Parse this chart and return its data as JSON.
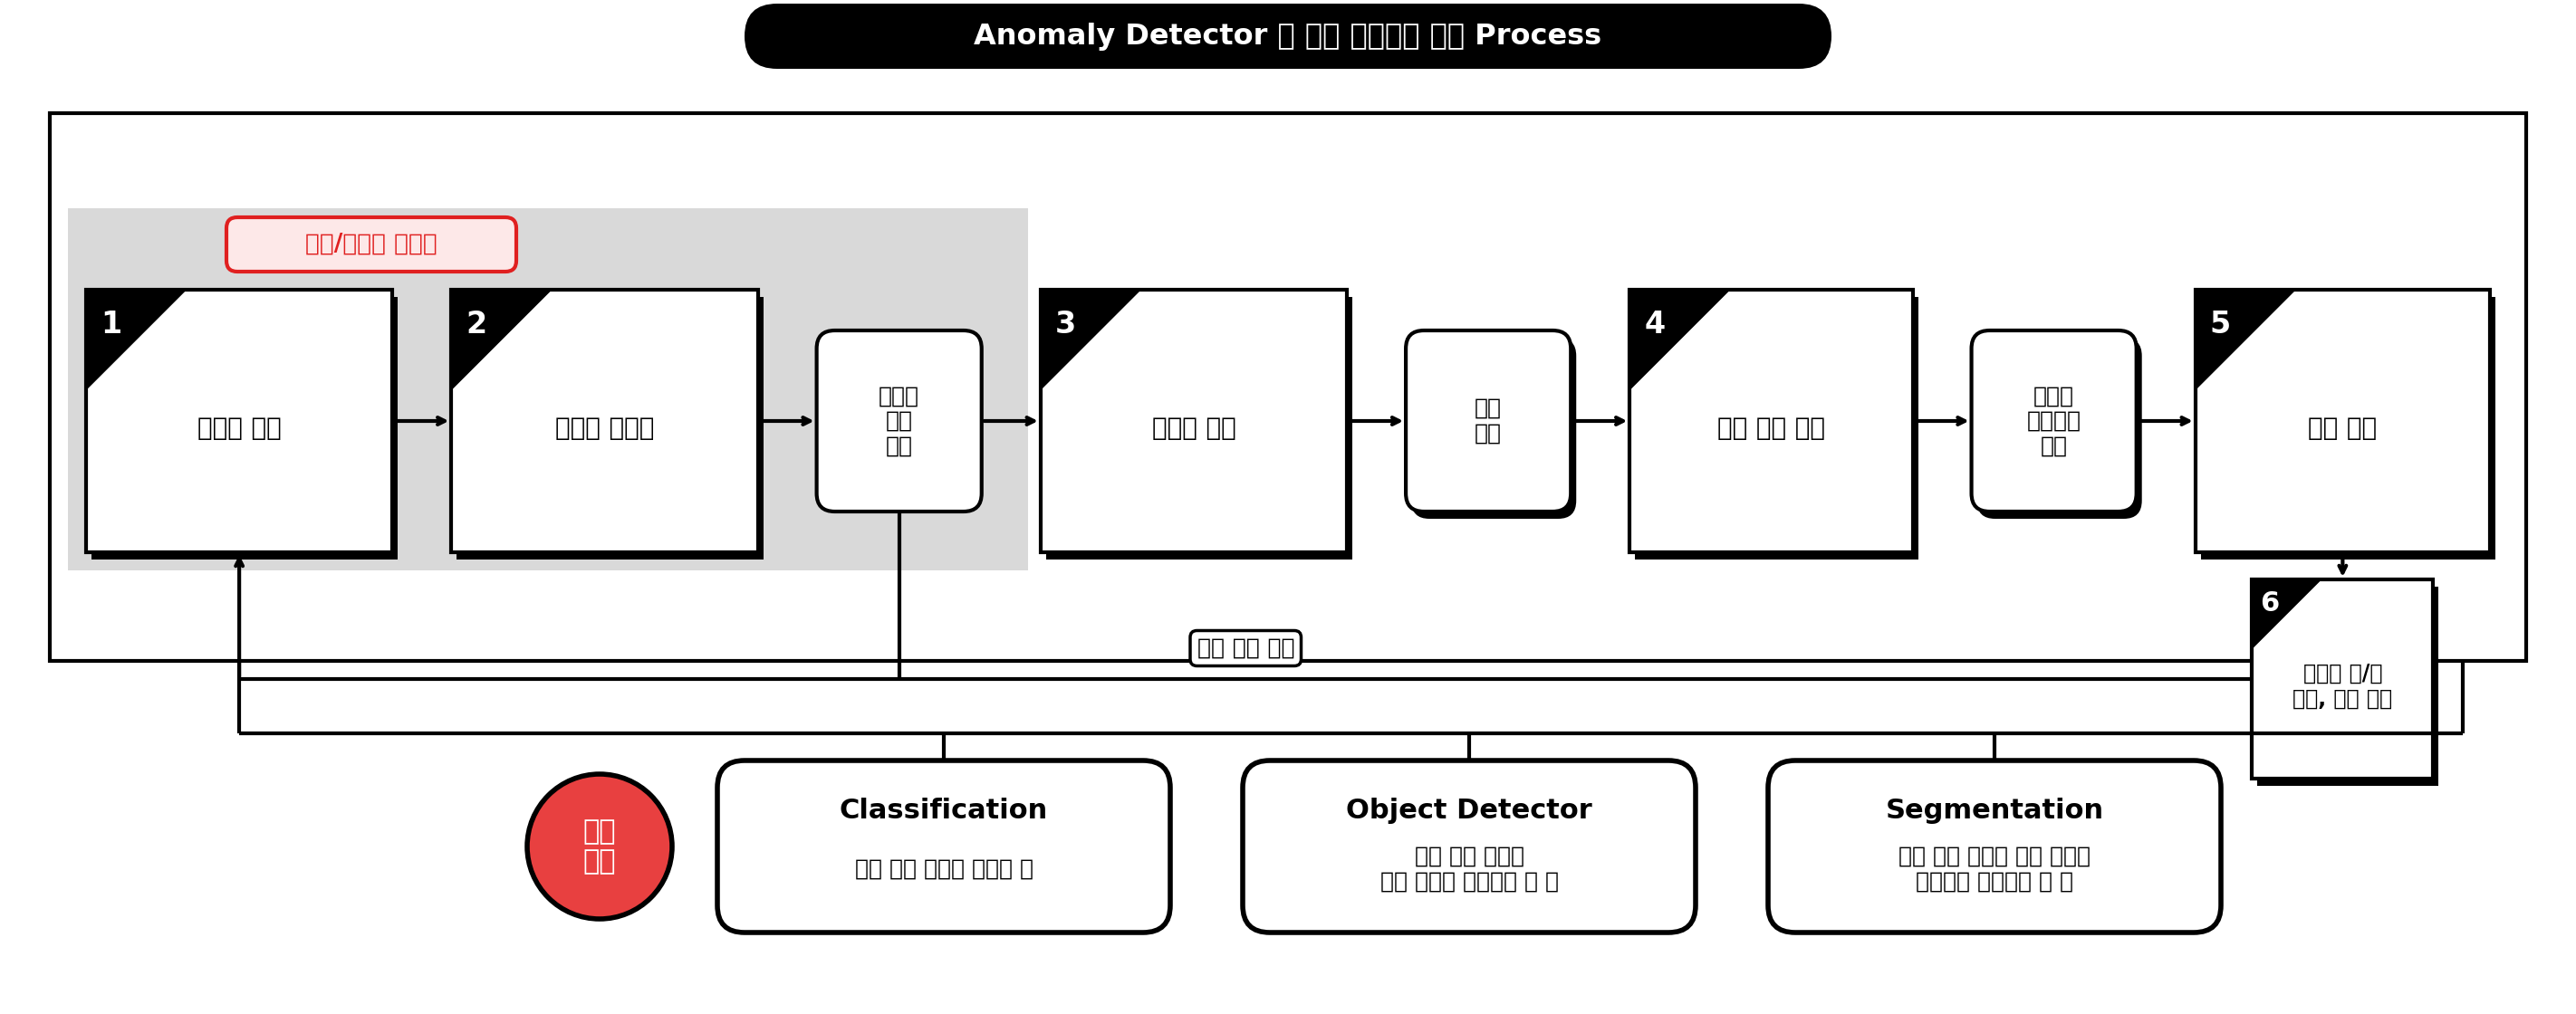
{
  "title": "Anomaly Detector 외 기본 모델들의 실행 Process",
  "bg_color": "#ffffff",
  "main_border_color": "#000000",
  "gray_bg_color": "#d9d9d9",
  "tag_label": "정상/비정상 데이터",
  "tag_bg": "#fde8e8",
  "tag_border": "#e02020",
  "tag_text_color": "#e02020",
  "steps": [
    {
      "num": "1",
      "label": "데이터 수집",
      "style": "numbered"
    },
    {
      "num": "2",
      "label": "데이터 라벨링",
      "style": "numbered"
    },
    {
      "num": null,
      "label": "베이직\n모델\n선택",
      "style": "rounded"
    },
    {
      "num": "3",
      "label": "데이터 학습",
      "style": "numbered"
    },
    {
      "num": null,
      "label": "모델\n생성",
      "style": "rounded"
    },
    {
      "num": "4",
      "label": "모델 성능 평가",
      "style": "numbered"
    },
    {
      "num": null,
      "label": "사용자\n맞춤설정\n추가",
      "style": "rounded"
    },
    {
      "num": "5",
      "label": "모델 배포",
      "style": "numbered"
    }
  ],
  "step6": {
    "num": "6",
    "label": "실시간 양/불\n판정, 불량 알람"
  },
  "feedback_label": "판정 결과 전송",
  "recommended_label": "추천\n모델",
  "models": [
    {
      "title": "Classification",
      "desc": "단일 개체 구분이 필요할 때"
    },
    {
      "title": "Object Detector",
      "desc": "두개 이상 개체를\n박스 형태로 구분해야 할 때"
    },
    {
      "title": "Segmentation",
      "desc": "두개 이상 개체를 픽셀 단위로\n분석하여 구분해야 할 때"
    }
  ]
}
